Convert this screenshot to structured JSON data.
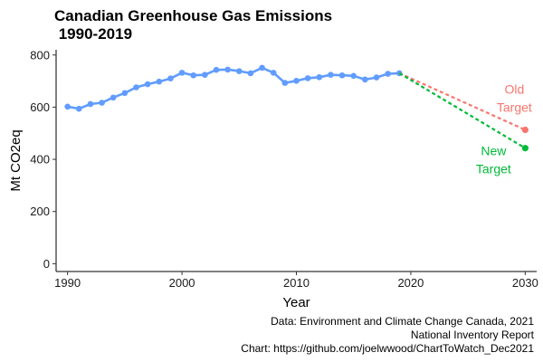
{
  "chart_data": {
    "type": "line",
    "title_line1": "Canadian Greenhouse Gas Emissions",
    "title_line2": " 1990-2019",
    "xlabel": "Year",
    "ylabel": "Mt CO2eq",
    "xlim": [
      1989,
      2031
    ],
    "ylim": [
      -30,
      820
    ],
    "x_ticks": [
      1990,
      2000,
      2010,
      2020,
      2030
    ],
    "y_ticks": [
      0,
      200,
      400,
      600,
      800
    ],
    "grid": false,
    "series": [
      {
        "name": "",
        "color": "#619CFF",
        "style": "solid",
        "x": [
          1990,
          1991,
          1992,
          1993,
          1994,
          1995,
          1996,
          1997,
          1998,
          1999,
          2000,
          2001,
          2002,
          2003,
          2004,
          2005,
          2006,
          2007,
          2008,
          2009,
          2010,
          2011,
          2012,
          2013,
          2014,
          2015,
          2016,
          2017,
          2018,
          2019
        ],
        "y": [
          602,
          594,
          612,
          617,
          637,
          654,
          676,
          688,
          698,
          710,
          732,
          722,
          724,
          743,
          744,
          738,
          730,
          751,
          732,
          693,
          701,
          711,
          715,
          724,
          722,
          720,
          706,
          714,
          728,
          730
        ]
      },
      {
        "name": "Old Target",
        "color": "#F8766D",
        "style": "dashed",
        "x": [
          2019,
          2030
        ],
        "y": [
          730,
          513
        ]
      },
      {
        "name": "New Target",
        "color": "#00BA38",
        "style": "dashed",
        "x": [
          2019,
          2030
        ],
        "y": [
          730,
          443
        ]
      }
    ],
    "annotations": [
      {
        "series": "Old Target",
        "lines": [
          "Old",
          "Target"
        ],
        "color": "#F8766D"
      },
      {
        "series": "New Target",
        "lines": [
          "New",
          "Target"
        ],
        "color": "#00BA38"
      }
    ]
  },
  "caption": {
    "line1": "Data: Environment and Climate Change Canada, 2021",
    "line2": "National Inventory Report",
    "line3": "Chart: https://github.com/joelwwood/ChartToWatch_Dec2021"
  }
}
